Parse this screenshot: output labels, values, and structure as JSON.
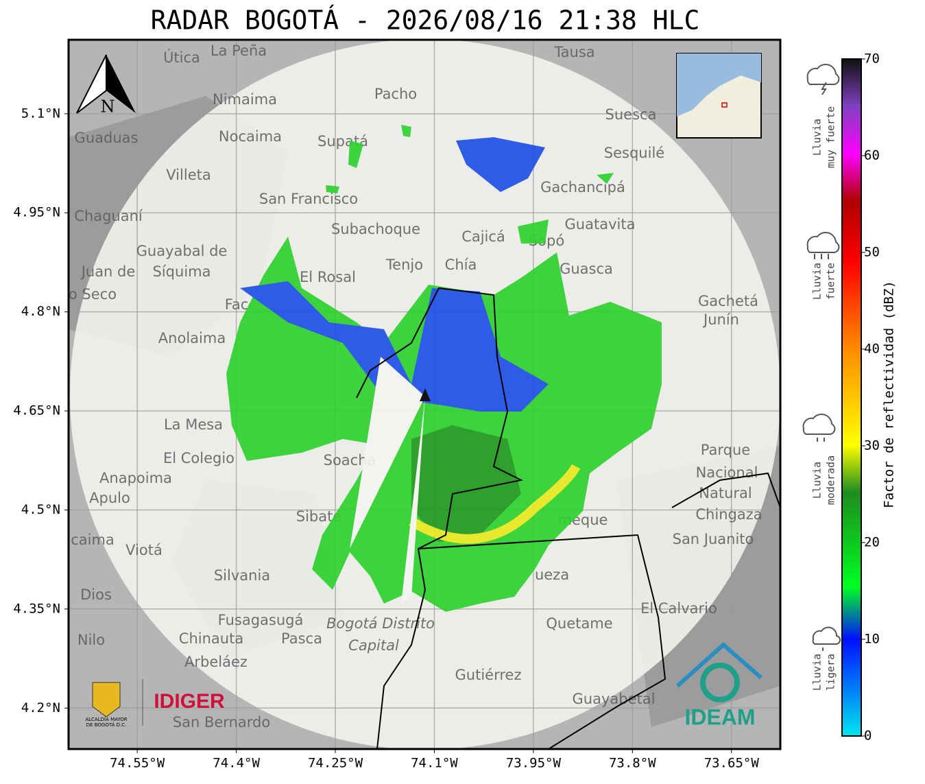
{
  "map": {
    "title": "RADAR BOGOTÁ - 2026/08/16 21:38 HLC",
    "lonlim": [
      -74.654,
      -73.576
    ],
    "latlim": [
      4.138,
      5.212
    ],
    "lonticks": [
      {
        "value": -74.55,
        "label": "74.55°W"
      },
      {
        "value": -74.4,
        "label": "74.4°W"
      },
      {
        "value": -74.25,
        "label": "74.25°W"
      },
      {
        "value": -74.1,
        "label": "74.1°W"
      },
      {
        "value": -73.95,
        "label": "73.95°W"
      },
      {
        "value": -73.8,
        "label": "73.8°W"
      },
      {
        "value": -73.65,
        "label": "73.65°W"
      }
    ],
    "latticks": [
      {
        "value": 5.1,
        "label": "5.1°N"
      },
      {
        "value": 4.95,
        "label": "4.95°N"
      },
      {
        "value": 4.8,
        "label": "4.8°N"
      },
      {
        "value": 4.65,
        "label": "4.65°N"
      },
      {
        "value": 4.5,
        "label": "4.5°N"
      },
      {
        "value": 4.35,
        "label": "4.35°N"
      },
      {
        "value": 4.2,
        "label": "4.2°N"
      }
    ],
    "north": "N",
    "places": [
      "La Peña",
      "Útica",
      "Tausa",
      "Pacho",
      "Nimaima",
      "Suesca",
      "Nocaima",
      "Guaduas",
      "Supatá",
      "Sesquilé",
      "Villeta",
      "Gachancipá",
      "San Francisco",
      "Chaguaní",
      "Guatavita",
      "Subachoque",
      "Cajicá",
      "Guayabal de",
      "Síquima",
      "Tenjo",
      "Chía",
      "Sopó",
      "Guasca",
      "El Rosal",
      "Juan de",
      "o Seco",
      "Fac",
      "Gachetá",
      "Junín",
      "Anolaima",
      "La Mesa",
      "El Colegio",
      "Soacha",
      "Parque",
      "Nacional",
      "Natural",
      "Chingaza",
      "Anapoima",
      "Apulo",
      "Sibaté",
      "meque",
      "San Juanito",
      "caima",
      "Viotá",
      "Silvania",
      "ueza",
      "Dios",
      "El Calvario",
      "Fusagasugá",
      "Quetame",
      "Nilo",
      "Chinauta",
      "Pasca",
      "Arbeláez",
      "Gutiérrez",
      "Guayabetal",
      "San Bernardo"
    ],
    "district": [
      "Bogotá Distrito",
      "Capital"
    ],
    "logos": {
      "alcaldia": [
        "ALCALDÍA MAYOR",
        "DE BOGOTÁ D.C."
      ],
      "idiger": "IDIGER",
      "ideam": "IDEAM"
    }
  },
  "colorbar": {
    "label": "Factor de reflectividad (dBZ)",
    "range": [
      0,
      70
    ],
    "ticks": [
      0,
      10,
      20,
      30,
      40,
      50,
      60,
      70
    ],
    "categories": [
      {
        "lines": [
          "Lluvia",
          "muy fuerte"
        ]
      },
      {
        "lines": [
          "Lluvia",
          "fuerte"
        ]
      },
      {
        "lines": [
          "Lluvia",
          "moderada"
        ]
      },
      {
        "lines": [
          "Lluvia",
          "ligera"
        ]
      }
    ]
  }
}
